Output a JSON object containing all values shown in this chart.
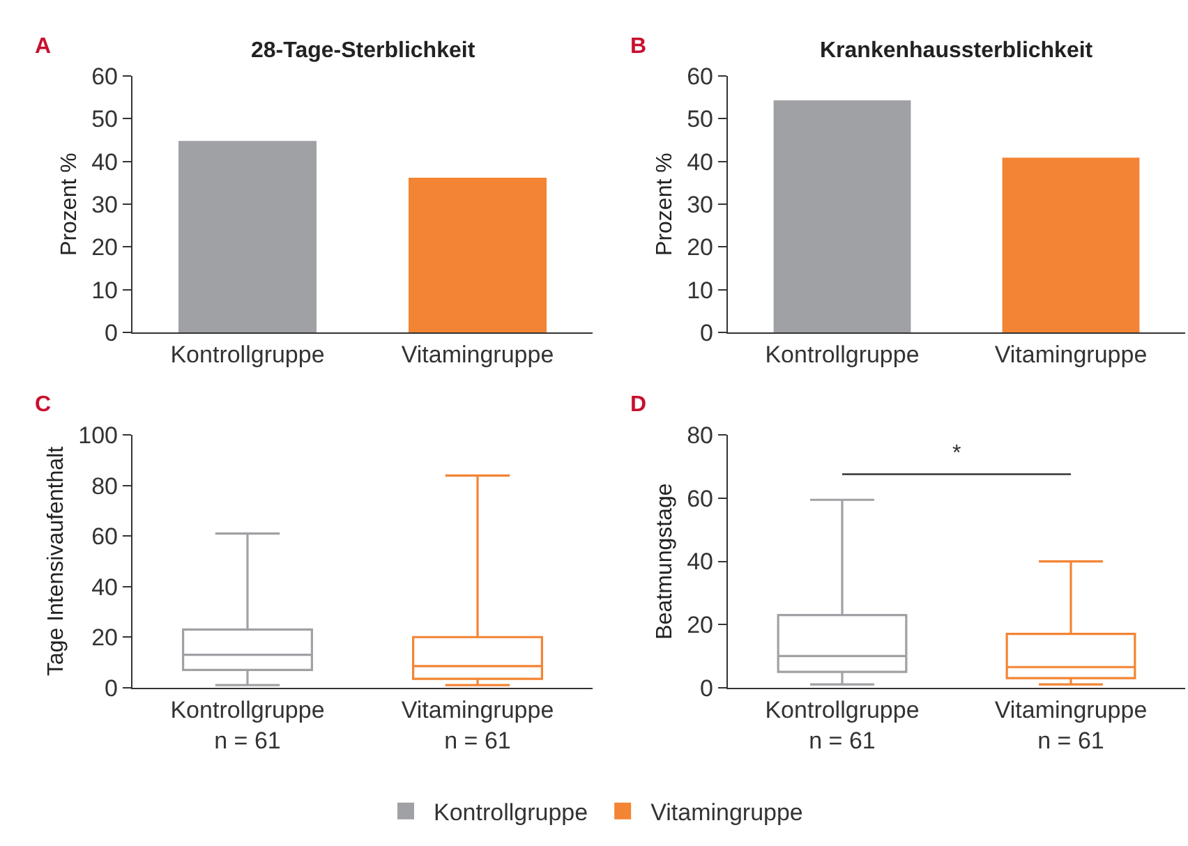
{
  "chart_data": [
    {
      "type": "bar",
      "title": "28-Tage-Sterblichkeit",
      "ylabel": "Prozent %",
      "categories": [
        "Kontrollgruppe",
        "Vitamingruppe"
      ],
      "series": [
        {
          "name": "Kontrollgruppe",
          "color": "#a0a1a5",
          "values": [
            44.8,
            null
          ]
        },
        {
          "name": "Vitamingruppe",
          "color": "#f38433",
          "values": [
            null,
            36.2
          ]
        }
      ],
      "ylim": [
        0,
        60
      ],
      "yticks": [
        0,
        10,
        20,
        30,
        40,
        50,
        60
      ],
      "legend": "bottom",
      "annotations": [
        "A"
      ]
    },
    {
      "type": "bar",
      "title": "Krankenhaussterblichkeit",
      "ylabel": "Prozent %",
      "categories": [
        "Kontrollgruppe",
        "Vitamingruppe"
      ],
      "values": [
        54.3,
        40.9
      ],
      "colors": [
        "#a0a1a5",
        "#f38433"
      ],
      "ylim": [
        0,
        60
      ],
      "yticks": [
        0,
        10,
        20,
        30,
        40,
        50,
        60
      ],
      "annotations": [
        "B"
      ]
    },
    {
      "type": "box",
      "ylabel": "Tage Intensivaufenthalt",
      "categories": [
        "Kontrollgruppe\nn = 61",
        "Vitamingruppe\nn = 61"
      ],
      "colors": [
        "#a0a1a5",
        "#f38433"
      ],
      "boxes": [
        {
          "low": 1,
          "q1": 7,
          "median": 13,
          "q3": 23,
          "high": 61
        },
        {
          "low": 1,
          "q1": 3.5,
          "median": 8.5,
          "q3": 20,
          "high": 84
        }
      ],
      "ylim": [
        0,
        100
      ],
      "yticks": [
        0,
        20,
        40,
        60,
        80,
        100
      ],
      "annotations": [
        "C"
      ]
    },
    {
      "type": "box",
      "ylabel": "Beatmungstage",
      "categories": [
        "Kontrollgruppe\nn = 61",
        "Vitamingruppe\nn = 61"
      ],
      "colors": [
        "#a0a1a5",
        "#f38433"
      ],
      "boxes": [
        {
          "low": 1,
          "q1": 5,
          "median": 10,
          "q3": 23,
          "high": 59.5
        },
        {
          "low": 1,
          "q1": 3,
          "median": 6.5,
          "q3": 17,
          "high": 40
        }
      ],
      "ylim": [
        0,
        80
      ],
      "yticks": [
        0,
        20,
        40,
        60,
        80
      ],
      "annotations": [
        "D",
        "*"
      ]
    }
  ]
}
